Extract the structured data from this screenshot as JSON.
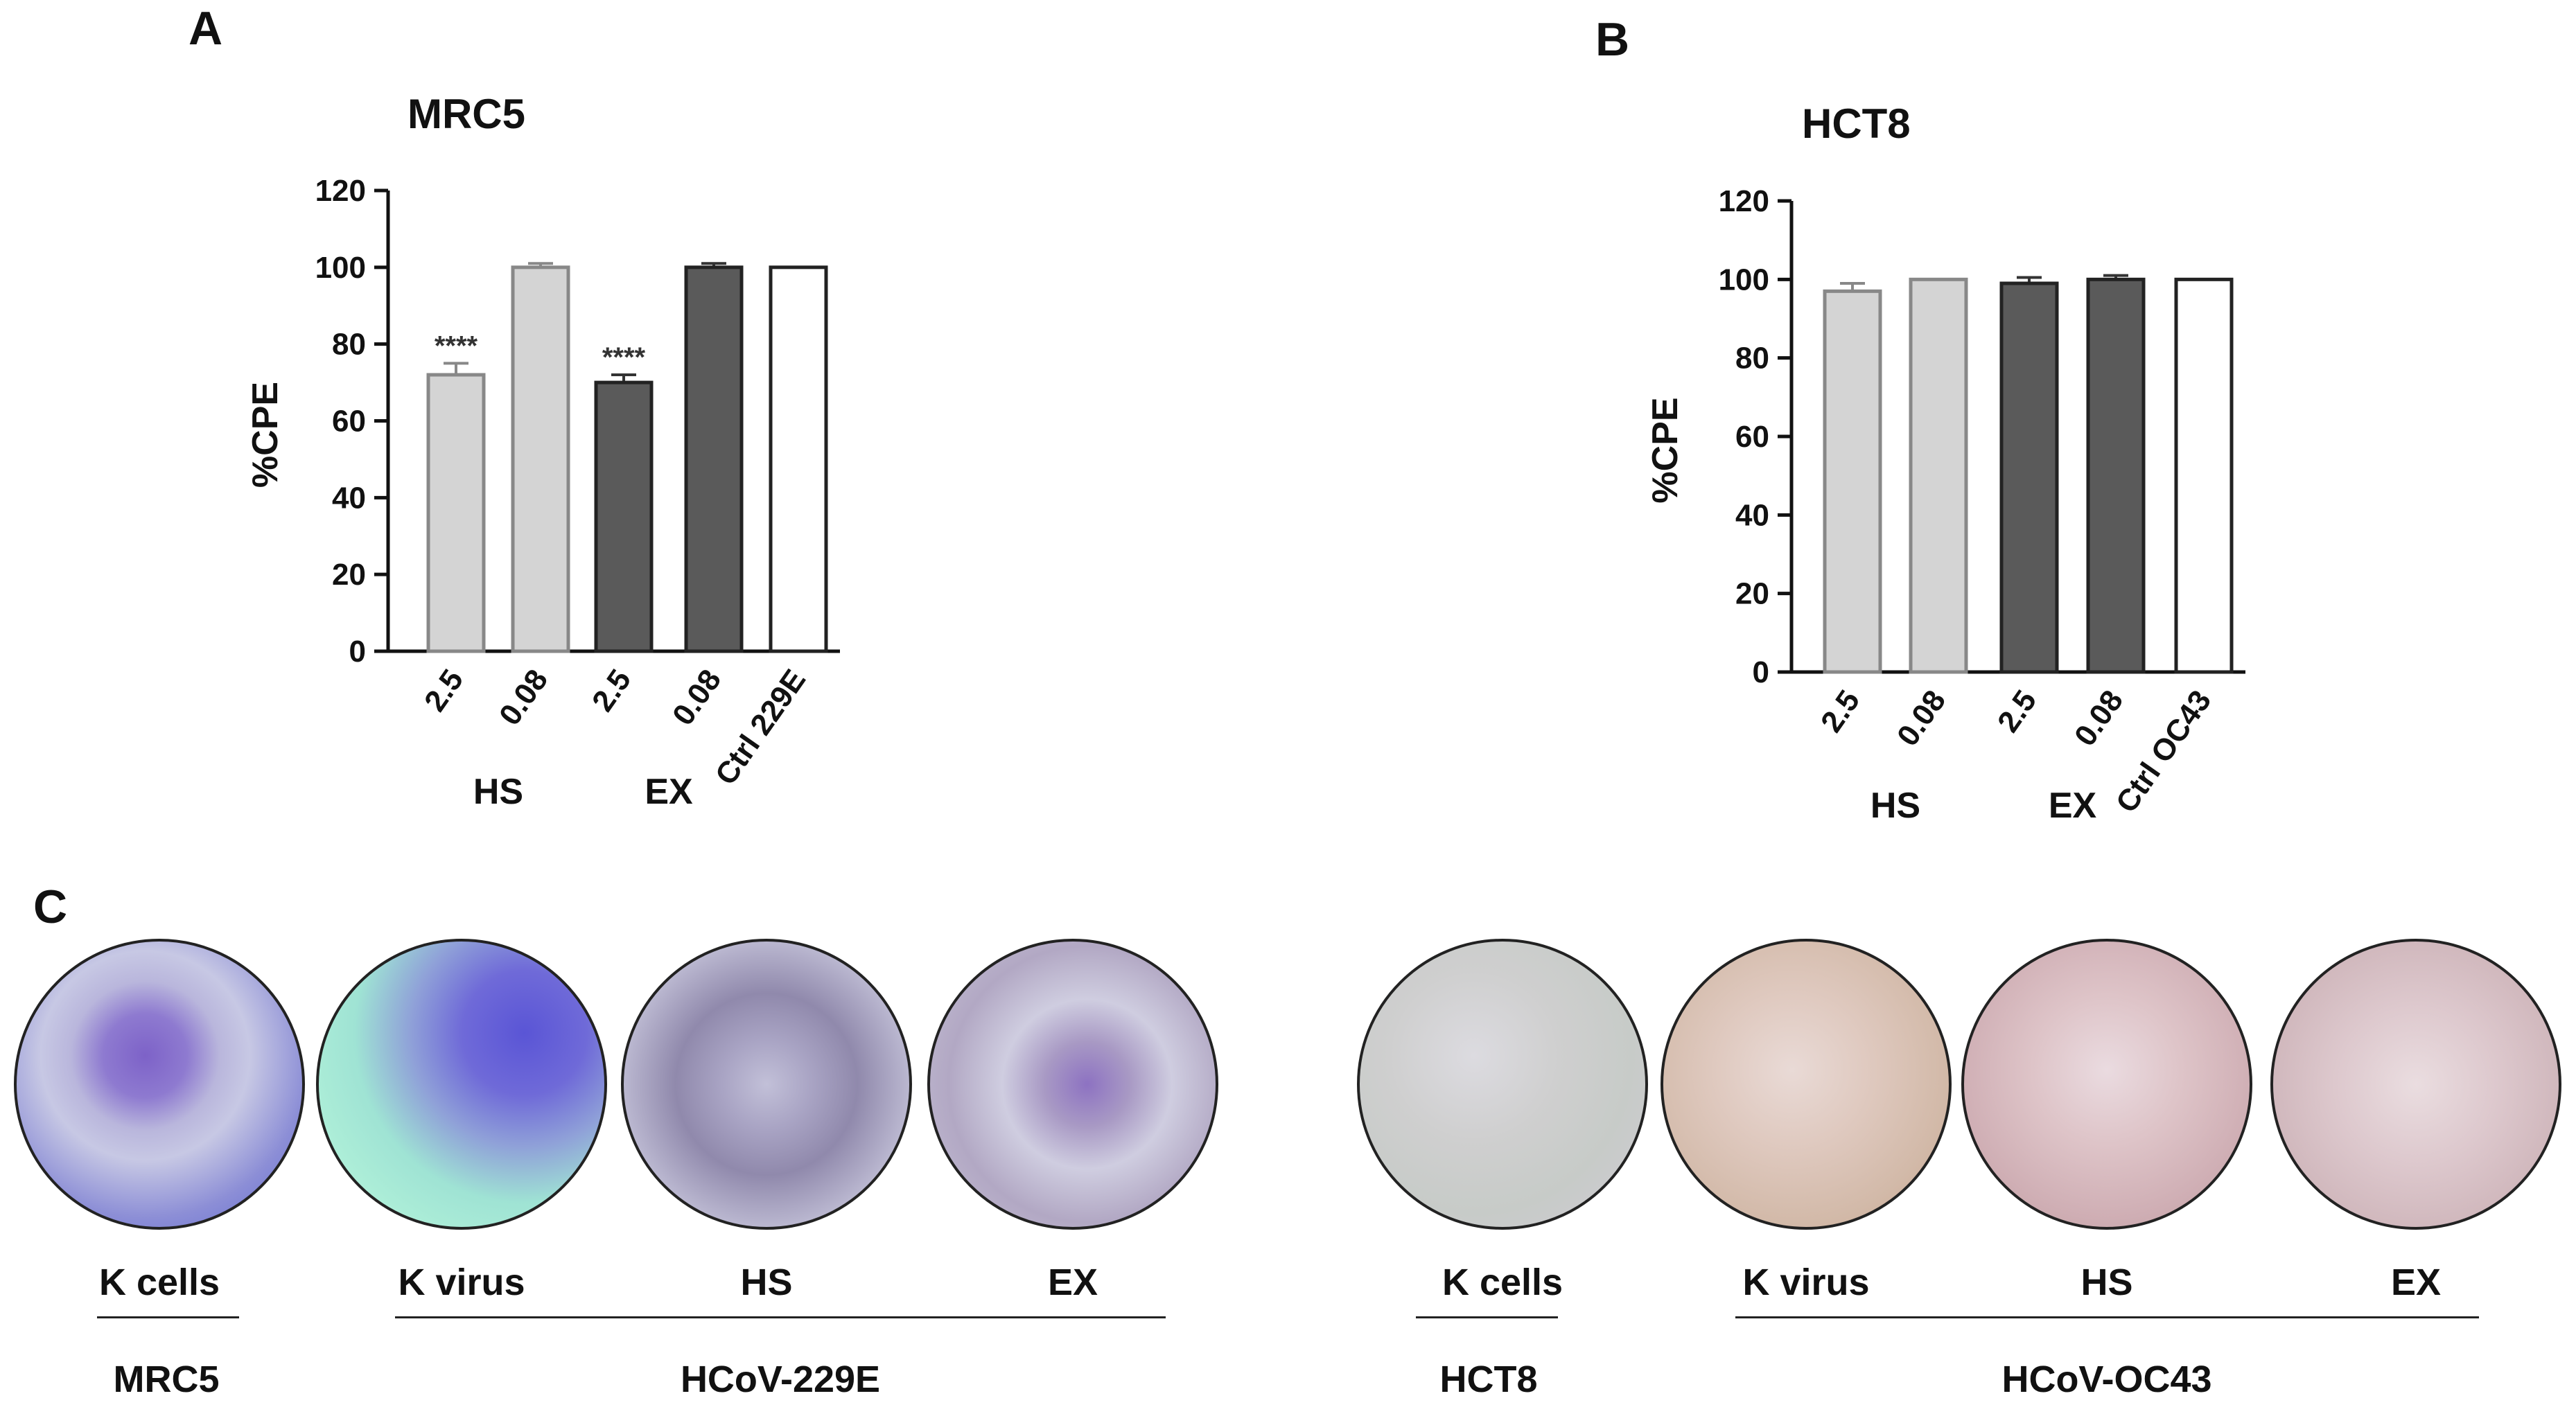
{
  "panel_labels": {
    "a": "A",
    "b": "B",
    "c": "C"
  },
  "chart_data": [
    {
      "type": "bar",
      "title": "MRC5",
      "ylabel": "%CPE",
      "ylim": [
        0,
        120
      ],
      "yticks": [
        0,
        20,
        40,
        60,
        80,
        100,
        120
      ],
      "categories": [
        "2.5",
        "0.08",
        "2.5",
        "0.08",
        "Ctrl 229E"
      ],
      "values": [
        72,
        100,
        70,
        100,
        100
      ],
      "errors": [
        3,
        1,
        2,
        1,
        0
      ],
      "bar_colors": [
        "#d4d4d4",
        "#d4d4d4",
        "#5a5a5a",
        "#5a5a5a",
        "#ffffff"
      ],
      "annotations": [
        "****",
        "",
        "****",
        "",
        ""
      ],
      "groups": [
        {
          "label": "HS",
          "members": [
            0,
            1
          ]
        },
        {
          "label": "EX",
          "members": [
            2,
            3
          ]
        }
      ]
    },
    {
      "type": "bar",
      "title": "HCT8",
      "ylabel": "%CPE",
      "ylim": [
        0,
        120
      ],
      "yticks": [
        0,
        20,
        40,
        60,
        80,
        100,
        120
      ],
      "categories": [
        "2.5",
        "0.08",
        "2.5",
        "0.08",
        "Ctrl OC43"
      ],
      "values": [
        97,
        100,
        99,
        100,
        100
      ],
      "errors": [
        2,
        0,
        1.5,
        1,
        0
      ],
      "bar_colors": [
        "#d4d4d4",
        "#d4d4d4",
        "#5a5a5a",
        "#5a5a5a",
        "#ffffff"
      ],
      "annotations": [
        "",
        "",
        "",
        "",
        ""
      ],
      "groups": [
        {
          "label": "HS",
          "members": [
            0,
            1
          ]
        },
        {
          "label": "EX",
          "members": [
            2,
            3
          ]
        }
      ]
    }
  ],
  "wells": [
    {
      "label": "K cells",
      "image": "mrc5-uninfected-cells-micrograph"
    },
    {
      "label": "K virus",
      "image": "mrc5-229e-infected-micrograph"
    },
    {
      "label": "HS",
      "image": "mrc5-229e-hs-treated-micrograph"
    },
    {
      "label": "EX",
      "image": "mrc5-229e-ex-treated-micrograph"
    },
    {
      "label": "K cells",
      "image": "hct8-uninfected-cells-micrograph"
    },
    {
      "label": "K virus",
      "image": "hct8-oc43-infected-micrograph"
    },
    {
      "label": "HS",
      "image": "hct8-oc43-hs-treated-micrograph"
    },
    {
      "label": "EX",
      "image": "hct8-oc43-ex-treated-micrograph"
    }
  ],
  "well_groups": [
    {
      "label": "MRC5"
    },
    {
      "label": "HCoV-229E"
    },
    {
      "label": "HCT8"
    },
    {
      "label": "HCoV-OC43"
    }
  ]
}
